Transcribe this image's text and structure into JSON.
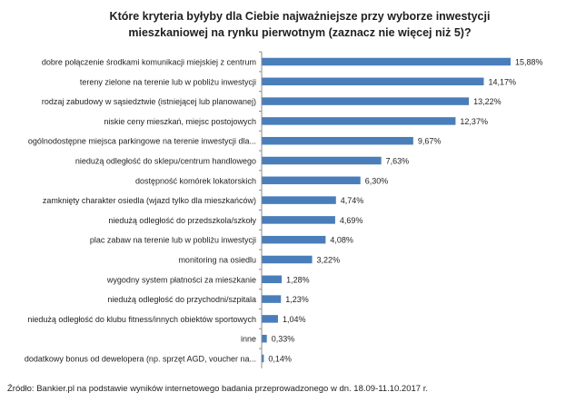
{
  "chart_data": {
    "type": "bar",
    "orientation": "horizontal",
    "title_line1": "Które kryteria byłyby dla Ciebie najważniejsze przy wyborze inwestycji",
    "title_line2": "mieszkaniowej na rynku pierwotnym (zaznacz nie więcej niż 5)?",
    "categories": [
      "dobre połączenie środkami komunikacji miejskiej z centrum",
      "tereny zielone na terenie lub w pobliżu inwestycji",
      "rodzaj zabudowy w sąsiedztwie (istniejącej lub planowanej)",
      "niskie ceny mieszkań, miejsc postojowych",
      "ogólnodostępne miejsca parkingowe na terenie inwestycji dla...",
      "niedużą odległość do sklepu/centrum handlowego",
      "dostępność komórek lokatorskich",
      "zamknięty charakter osiedla (wjazd tylko dla mieszkańców)",
      "niedużą odległość do przedszkola/szkoły",
      "plac zabaw na terenie lub w pobliżu inwestycji",
      "monitoring na osiedlu",
      "wygodny system płatności za mieszkanie",
      "niedużą odległość do przychodni/szpitala",
      "niedużą odległość do klubu fitness/innych obiektów sportowych",
      "inne",
      "dodatkowy bonus od dewelopera (np. sprzęt AGD, voucher na..."
    ],
    "values": [
      15.88,
      14.17,
      13.22,
      12.37,
      9.67,
      7.63,
      6.3,
      4.74,
      4.69,
      4.08,
      3.22,
      1.28,
      1.23,
      1.04,
      0.33,
      0.14
    ],
    "value_labels": [
      "15,88%",
      "14,17%",
      "13,22%",
      "12,37%",
      "9,67%",
      "7,63%",
      "6,30%",
      "4,74%",
      "4,69%",
      "4,08%",
      "3,22%",
      "1,28%",
      "1,23%",
      "1,04%",
      "0,33%",
      "0,14%"
    ],
    "source": "Źródło: Bankier.pl na podstawie wyników internetowego badania przeprowadzonego w dn. 18.09-11.10.2017 r.",
    "bar_color": "#4a7ebb",
    "grid": false
  }
}
